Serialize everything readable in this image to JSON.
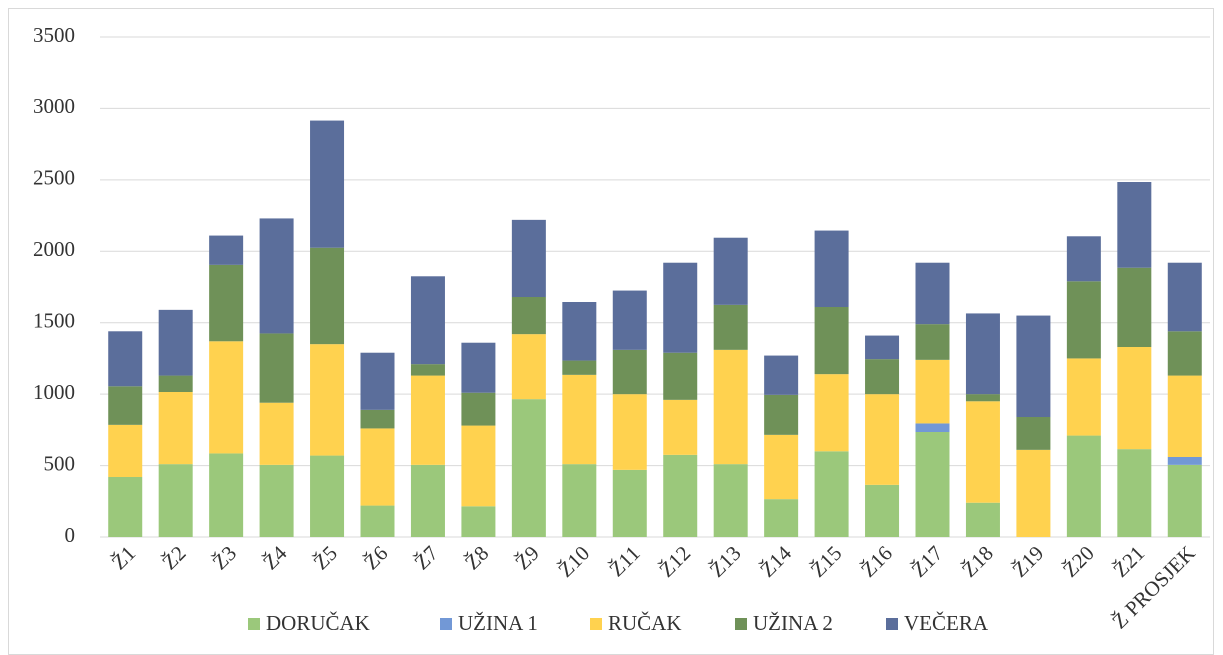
{
  "chart_data": {
    "type": "stacked_bar",
    "categories": [
      "Ž1",
      "Ž2",
      "Ž3",
      "Ž4",
      "Ž5",
      "Ž6",
      "Ž7",
      "Ž8",
      "Ž9",
      "Ž10",
      "Ž11",
      "Ž12",
      "Ž13",
      "Ž14",
      "Ž15",
      "Ž16",
      "Ž17",
      "Ž18",
      "Ž19",
      "Ž20",
      "Ž21",
      "Ž PROSJEK"
    ],
    "series": [
      {
        "name": "DORUČAK",
        "color": "#9bc87b",
        "values": [
          420,
          510,
          585,
          505,
          570,
          220,
          505,
          215,
          965,
          510,
          470,
          575,
          510,
          265,
          600,
          365,
          735,
          240,
          0,
          710,
          615,
          505
        ]
      },
      {
        "name": "UŽINA 1",
        "color": "#7298d6",
        "values": [
          0,
          0,
          0,
          0,
          0,
          0,
          0,
          0,
          0,
          0,
          0,
          0,
          0,
          0,
          0,
          0,
          60,
          0,
          0,
          0,
          0,
          55
        ]
      },
      {
        "name": "RUČAK",
        "color": "#ffd24f",
        "values": [
          365,
          505,
          785,
          435,
          780,
          540,
          625,
          565,
          455,
          625,
          530,
          385,
          800,
          450,
          540,
          635,
          445,
          710,
          610,
          540,
          715,
          570
        ]
      },
      {
        "name": "UŽINA 2",
        "color": "#6f9158",
        "values": [
          270,
          115,
          535,
          485,
          675,
          130,
          80,
          230,
          260,
          100,
          310,
          330,
          315,
          280,
          470,
          245,
          250,
          50,
          230,
          540,
          555,
          310
        ]
      },
      {
        "name": "VEČERA",
        "color": "#5b6e9b",
        "values": [
          385,
          460,
          205,
          805,
          890,
          400,
          615,
          350,
          540,
          410,
          415,
          630,
          470,
          275,
          535,
          165,
          430,
          565,
          710,
          315,
          600,
          480
        ]
      }
    ],
    "ylim": [
      0,
      3500
    ],
    "yticks": [
      0,
      500,
      1000,
      1500,
      2000,
      2500,
      3000,
      3500
    ],
    "grid": true,
    "legend": "bottom"
  }
}
